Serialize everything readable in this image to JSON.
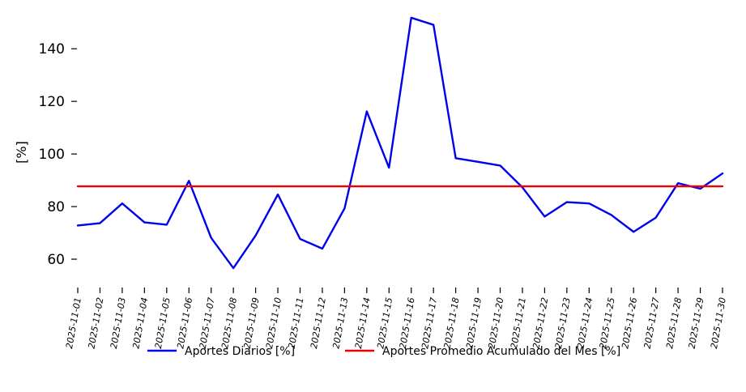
{
  "chart_data": {
    "type": "line",
    "title": "",
    "xlabel": "",
    "ylabel": "[%]",
    "ylim": [
      52,
      153
    ],
    "yticks": [
      60,
      80,
      100,
      120,
      140
    ],
    "grid": false,
    "legend_position": "bottom",
    "x": [
      "2025-11-01",
      "2025-11-02",
      "2025-11-03",
      "2025-11-04",
      "2025-11-05",
      "2025-11-06",
      "2025-11-07",
      "2025-11-08",
      "2025-11-09",
      "2025-11-10",
      "2025-11-11",
      "2025-11-12",
      "2025-11-13",
      "2025-11-14",
      "2025-11-15",
      "2025-11-16",
      "2025-11-17",
      "2025-11-18",
      "2025-11-19",
      "2025-11-20",
      "2025-11-21",
      "2025-11-22",
      "2025-11-23",
      "2025-11-24",
      "2025-11-25",
      "2025-11-26",
      "2025-11-27",
      "2025-11-28",
      "2025-11-29",
      "2025-11-30"
    ],
    "series": [
      {
        "name": "Aportes Diarios [%]",
        "color": "#0000ee",
        "values": [
          72.8,
          73.7,
          81.2,
          74.0,
          73.1,
          89.8,
          68.1,
          56.6,
          69.0,
          84.6,
          67.7,
          64.0,
          79.3,
          116.2,
          94.8,
          151.8,
          149.1,
          98.4,
          97.0,
          95.6,
          87.3,
          76.2,
          81.7,
          81.2,
          76.8,
          70.4,
          75.8,
          88.9,
          86.8,
          92.6
        ]
      },
      {
        "name": "Aportes Promedio Acumulado del Mes [%]",
        "color": "#ee0000",
        "values": [
          87.7,
          87.7,
          87.7,
          87.7,
          87.7,
          87.7,
          87.7,
          87.7,
          87.7,
          87.7,
          87.7,
          87.7,
          87.7,
          87.7,
          87.7,
          87.7,
          87.7,
          87.7,
          87.7,
          87.7,
          87.7,
          87.7,
          87.7,
          87.7,
          87.7,
          87.7,
          87.7,
          87.7,
          87.7,
          87.7
        ]
      }
    ]
  }
}
